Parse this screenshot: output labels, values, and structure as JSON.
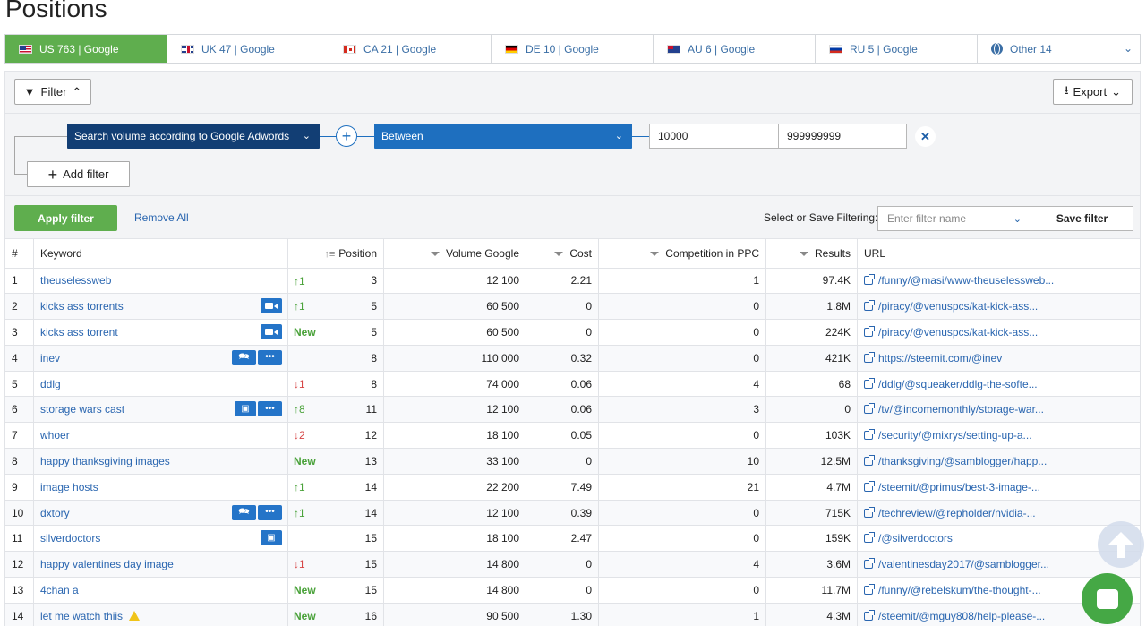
{
  "page": {
    "title": "Positions"
  },
  "tabs": [
    {
      "label": "US 763 | Google",
      "flag": "us",
      "active": true
    },
    {
      "label": "UK 47 | Google",
      "flag": "uk"
    },
    {
      "label": "CA 21 | Google",
      "flag": "ca"
    },
    {
      "label": "DE 10 | Google",
      "flag": "de"
    },
    {
      "label": "AU 6 | Google",
      "flag": "au"
    },
    {
      "label": "RU 5 | Google",
      "flag": "ru"
    },
    {
      "label": "Other 14",
      "flag": "globe"
    }
  ],
  "filter": {
    "toggle_label": "Filter",
    "export_label": "Export",
    "field": "Search volume according to Google Adwords",
    "operator": "Between",
    "value_from": "10000",
    "value_to": "999999999",
    "add_filter_label": "Add filter",
    "apply_label": "Apply filter",
    "remove_all_label": "Remove All",
    "save_caption": "Select or Save Filtering:",
    "filter_name_placeholder": "Enter filter name",
    "save_label": "Save filter"
  },
  "table": {
    "headers": {
      "num": "#",
      "keyword": "Keyword",
      "position": "Position",
      "volume": "Volume Google",
      "cost": "Cost",
      "competition": "Competition in PPC",
      "results": "Results",
      "url": "URL"
    },
    "rows": [
      {
        "num": "1",
        "keyword": "theuselessweb",
        "badges": [],
        "change": "↑1",
        "change_type": "up",
        "position": "3",
        "volume": "12 100",
        "cost": "2.21",
        "competition": "1",
        "results": "97.4K",
        "url": "/funny/@masi/www-theuselessweb..."
      },
      {
        "num": "2",
        "keyword": "kicks ass torrents",
        "badges": [
          "video"
        ],
        "change": "↑1",
        "change_type": "up",
        "position": "5",
        "volume": "60 500",
        "cost": "0",
        "competition": "0",
        "results": "1.8M",
        "url": "/piracy/@venuspcs/kat-kick-ass..."
      },
      {
        "num": "3",
        "keyword": "kicks ass torrent",
        "badges": [
          "video"
        ],
        "change": "New",
        "change_type": "new",
        "position": "5",
        "volume": "60 500",
        "cost": "0",
        "competition": "0",
        "results": "224K",
        "url": "/piracy/@venuspcs/kat-kick-ass..."
      },
      {
        "num": "4",
        "keyword": "inev",
        "badges": [
          "chat",
          "more"
        ],
        "change": "",
        "change_type": "",
        "position": "8",
        "volume": "110 000",
        "cost": "0.32",
        "competition": "0",
        "results": "421K",
        "url": "https://steemit.com/@inev"
      },
      {
        "num": "5",
        "keyword": "ddlg",
        "badges": [],
        "change": "↓1",
        "change_type": "down",
        "position": "8",
        "volume": "74 000",
        "cost": "0.06",
        "competition": "4",
        "results": "68",
        "url": "/ddlg/@squeaker/ddlg-the-softe..."
      },
      {
        "num": "6",
        "keyword": "storage wars cast",
        "badges": [
          "image",
          "more"
        ],
        "change": "↑8",
        "change_type": "up",
        "position": "11",
        "volume": "12 100",
        "cost": "0.06",
        "competition": "3",
        "results": "0",
        "url": "/tv/@incomemonthly/storage-war..."
      },
      {
        "num": "7",
        "keyword": "whoer",
        "badges": [],
        "change": "↓2",
        "change_type": "down",
        "position": "12",
        "volume": "18 100",
        "cost": "0.05",
        "competition": "0",
        "results": "103K",
        "url": "/security/@mixrys/setting-up-a..."
      },
      {
        "num": "8",
        "keyword": "happy thanksgiving images",
        "badges": [],
        "change": "New",
        "change_type": "new",
        "position": "13",
        "volume": "33 100",
        "cost": "0",
        "competition": "10",
        "results": "12.5M",
        "url": "/thanksgiving/@samblogger/happ..."
      },
      {
        "num": "9",
        "keyword": "image hosts",
        "badges": [],
        "change": "↑1",
        "change_type": "up",
        "position": "14",
        "volume": "22 200",
        "cost": "7.49",
        "competition": "21",
        "results": "4.7M",
        "url": "/steemit/@primus/best-3-image-..."
      },
      {
        "num": "10",
        "keyword": "dxtory",
        "badges": [
          "chat",
          "more"
        ],
        "change": "↑1",
        "change_type": "up",
        "position": "14",
        "volume": "12 100",
        "cost": "0.39",
        "competition": "0",
        "results": "715K",
        "url": "/techreview/@repholder/nvidia-..."
      },
      {
        "num": "11",
        "keyword": "silverdoctors",
        "badges": [
          "image"
        ],
        "change": "",
        "change_type": "",
        "position": "15",
        "volume": "18 100",
        "cost": "2.47",
        "competition": "0",
        "results": "159K",
        "url": "/@silverdoctors"
      },
      {
        "num": "12",
        "keyword": "happy valentines day image",
        "badges": [],
        "change": "↓1",
        "change_type": "down",
        "position": "15",
        "volume": "14 800",
        "cost": "0",
        "competition": "4",
        "results": "3.6M",
        "url": "/valentinesday2017/@samblogger..."
      },
      {
        "num": "13",
        "keyword": "4chan a",
        "badges": [],
        "change": "New",
        "change_type": "new",
        "position": "15",
        "volume": "14 800",
        "cost": "0",
        "competition": "0",
        "results": "11.7M",
        "url": "/funny/@rebelskum/the-thought-..."
      },
      {
        "num": "14",
        "keyword": "let me watch thiis",
        "badges": [],
        "warning": true,
        "change": "New",
        "change_type": "new",
        "position": "16",
        "volume": "90 500",
        "cost": "1.30",
        "competition": "1",
        "results": "4.3M",
        "url": "/steemit/@mguy808/help-please-..."
      }
    ]
  }
}
